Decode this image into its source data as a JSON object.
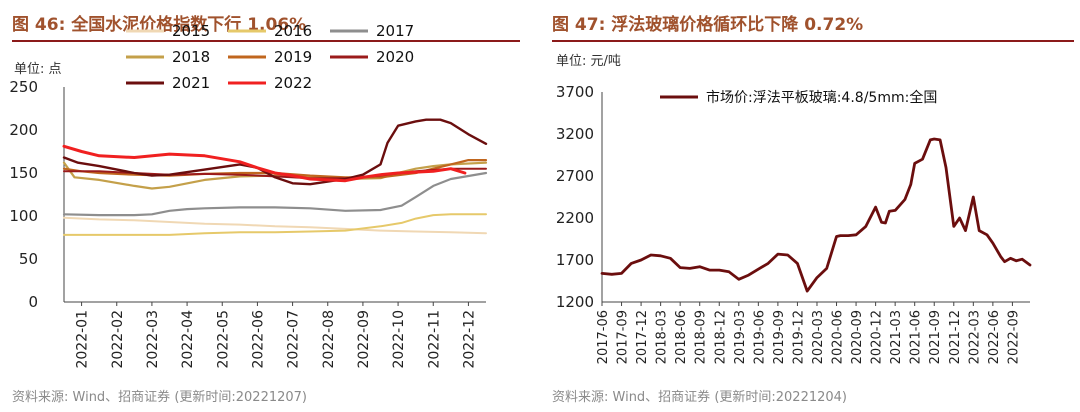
{
  "left": {
    "title": "图 46: 全国水泥价格指数下行 1.06%",
    "unit": "单位: 点",
    "source": "资料来源: Wind、招商证券 (更新时间:20221207)"
  },
  "right": {
    "title": "图 47: 浮法玻璃价格循环比下降 0.72%",
    "unit": "单位: 元/吨",
    "source": "资料来源: Wind、招商证券 (更新时间:20221204)"
  },
  "chart_data": [
    {
      "type": "line",
      "title": "全国水泥价格指数下行 1.06%",
      "ylabel": "单位: 点",
      "ylim": [
        0,
        250
      ],
      "yticks": [
        0,
        50,
        100,
        150,
        200,
        250
      ],
      "categories": [
        "2022-01",
        "2022-02",
        "2022-03",
        "2022-04",
        "2022-05",
        "2022-06",
        "2022-07",
        "2022-08",
        "2022-09",
        "2022-10",
        "2022-11",
        "2022-12"
      ],
      "xlim": [
        0,
        12
      ],
      "series": [
        {
          "name": "2015",
          "color": "#F0D8B4",
          "width": 2,
          "x": [
            0,
            1,
            2,
            3,
            4,
            5,
            6,
            7,
            8,
            9,
            10,
            11,
            12
          ],
          "values": [
            98,
            96,
            95,
            93,
            91,
            90,
            88,
            87,
            85,
            83,
            82,
            81,
            80
          ]
        },
        {
          "name": "2016",
          "color": "#E6C96A",
          "width": 2,
          "x": [
            0,
            1,
            2,
            3,
            4,
            5,
            6,
            7,
            8,
            8.6,
            9,
            9.6,
            10,
            10.5,
            11,
            12
          ],
          "values": [
            78,
            78,
            78,
            78,
            80,
            81,
            81,
            82,
            83,
            86,
            88,
            92,
            97,
            101,
            102,
            102
          ]
        },
        {
          "name": "2017",
          "color": "#8E8E8E",
          "width": 2.2,
          "x": [
            0,
            1,
            2,
            2.5,
            3,
            3.5,
            4,
            5,
            6,
            7,
            8,
            9,
            9.6,
            10,
            10.5,
            11,
            12
          ],
          "values": [
            102,
            101,
            101,
            102,
            106,
            108,
            109,
            110,
            110,
            109,
            106,
            107,
            112,
            122,
            135,
            143,
            150
          ]
        },
        {
          "name": "2018",
          "color": "#C4A04A",
          "width": 2.2,
          "x": [
            0,
            0.3,
            1,
            2,
            2.5,
            3,
            4,
            5,
            6,
            7,
            8,
            9,
            9.5,
            10,
            10.5,
            11,
            12
          ],
          "values": [
            162,
            145,
            142,
            135,
            132,
            134,
            142,
            146,
            147,
            146,
            143,
            144,
            150,
            155,
            158,
            160,
            162
          ]
        },
        {
          "name": "2019",
          "color": "#C0661E",
          "width": 2.2,
          "x": [
            0,
            0.5,
            1,
            2,
            3,
            4,
            5,
            6,
            7,
            8,
            9,
            10,
            11,
            11.5,
            12
          ],
          "values": [
            155,
            152,
            150,
            148,
            147,
            149,
            150,
            150,
            147,
            145,
            145,
            150,
            160,
            165,
            165
          ]
        },
        {
          "name": "2020",
          "color": "#9B1B1B",
          "width": 2,
          "x": [
            0,
            1,
            2,
            3,
            4,
            5,
            6,
            7,
            8,
            9,
            10,
            11,
            12
          ],
          "values": [
            152,
            152,
            150,
            148,
            149,
            148,
            146,
            144,
            144,
            147,
            152,
            155,
            155
          ]
        },
        {
          "name": "2021",
          "color": "#6B0E0E",
          "width": 2.4,
          "x": [
            0,
            0.4,
            1,
            2,
            2.5,
            3,
            4,
            5,
            5.5,
            6,
            6.5,
            7,
            7.5,
            8,
            8.5,
            9,
            9.2,
            9.5,
            10,
            10.3,
            10.7,
            11,
            11.5,
            12
          ],
          "values": [
            168,
            162,
            158,
            150,
            147,
            148,
            154,
            160,
            156,
            145,
            138,
            137,
            140,
            143,
            148,
            160,
            185,
            205,
            210,
            212,
            212,
            208,
            195,
            184
          ]
        },
        {
          "name": "2022",
          "color": "#F02020",
          "width": 3,
          "x": [
            0,
            0.5,
            1,
            2,
            3,
            4,
            5,
            5.5,
            6,
            6.5,
            7,
            7.5,
            8,
            8.5,
            9,
            9.5,
            10,
            10.5,
            11,
            11.4
          ],
          "values": [
            181,
            175,
            170,
            168,
            172,
            170,
            163,
            156,
            150,
            147,
            143,
            142,
            141,
            145,
            148,
            150,
            151,
            152,
            155,
            150
          ]
        }
      ]
    },
    {
      "type": "line",
      "title": "浮法玻璃价格循环比下降 0.72%",
      "ylabel": "单位: 元/吨",
      "ylim": [
        1200,
        3700
      ],
      "yticks": [
        1200,
        1700,
        2200,
        2700,
        3200,
        3700
      ],
      "categories": [
        "2017-06",
        "2017-09",
        "2017-12",
        "2018-03",
        "2018-06",
        "2018-09",
        "2018-12",
        "2019-03",
        "2019-06",
        "2019-09",
        "2019-12",
        "2020-03",
        "2020-06",
        "2020-09",
        "2020-12",
        "2021-03",
        "2021-06",
        "2021-09",
        "2021-12",
        "2022-03",
        "2022-06",
        "2022-09"
      ],
      "xlim": [
        0,
        21.9
      ],
      "series": [
        {
          "name": "市场价:浮法平板玻璃:4.8/5mm:全国",
          "color": "#6B0E0E",
          "width": 2.8,
          "x": [
            0,
            0.5,
            1,
            1.5,
            2,
            2.5,
            3,
            3.5,
            4,
            4.5,
            5,
            5.5,
            6,
            6.5,
            7,
            7.5,
            8,
            8.5,
            9,
            9.5,
            10,
            10.5,
            11,
            11.5,
            12,
            12.2,
            12.6,
            13,
            13.5,
            14,
            14.3,
            14.5,
            14.7,
            15,
            15.5,
            15.8,
            16,
            16.4,
            16.8,
            17,
            17.3,
            17.6,
            18,
            18.3,
            18.6,
            19,
            19.3,
            19.7,
            20,
            20.4,
            20.6,
            20.9,
            21.2,
            21.5,
            21.9
          ],
          "values": [
            1540,
            1530,
            1540,
            1660,
            1700,
            1760,
            1750,
            1720,
            1610,
            1600,
            1620,
            1580,
            1580,
            1560,
            1470,
            1520,
            1590,
            1660,
            1770,
            1760,
            1660,
            1330,
            1490,
            1600,
            1980,
            1990,
            1990,
            2000,
            2100,
            2330,
            2150,
            2140,
            2280,
            2290,
            2420,
            2600,
            2850,
            2900,
            3130,
            3140,
            3130,
            2800,
            2100,
            2200,
            2050,
            2450,
            2050,
            2000,
            1900,
            1740,
            1680,
            1720,
            1690,
            1710,
            1640
          ]
        }
      ]
    }
  ]
}
